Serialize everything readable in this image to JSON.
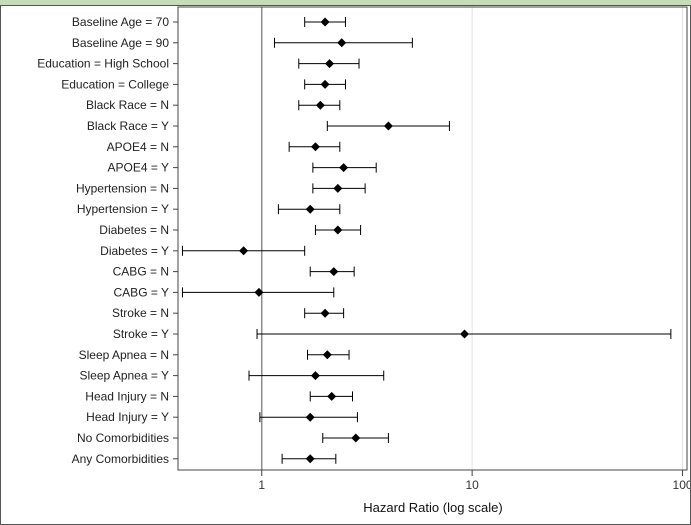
{
  "chart_data": {
    "type": "forest",
    "xscale": "log",
    "xlim": [
      0.4,
      105
    ],
    "xticks": [
      1,
      10,
      100
    ],
    "xtick_labels": [
      "1",
      "10",
      "100"
    ],
    "xlabel": "Hazard Ratio (log scale)",
    "reference_line": 1,
    "grid": "vertical gridlines at ticks",
    "colors": {
      "reference": "#8c8c8c",
      "grid": "#e2e2e2",
      "marker": "#000000",
      "header": "#c5dcb8"
    },
    "rows": [
      {
        "label": "Baseline Age = 70",
        "hr": 2.0,
        "lo": 1.6,
        "hi": 2.5
      },
      {
        "label": "Baseline Age = 90",
        "hr": 2.4,
        "lo": 1.15,
        "hi": 5.2
      },
      {
        "label": "Education = High School",
        "hr": 2.1,
        "lo": 1.5,
        "hi": 2.9
      },
      {
        "label": "Education = College",
        "hr": 2.0,
        "lo": 1.6,
        "hi": 2.5
      },
      {
        "label": "Black Race = N",
        "hr": 1.9,
        "lo": 1.5,
        "hi": 2.35
      },
      {
        "label": "Black Race = Y",
        "hr": 4.0,
        "lo": 2.05,
        "hi": 7.8
      },
      {
        "label": "APOE4 = N",
        "hr": 1.8,
        "lo": 1.35,
        "hi": 2.35
      },
      {
        "label": "APOE4 = Y",
        "hr": 2.45,
        "lo": 1.75,
        "hi": 3.5
      },
      {
        "label": "Hypertension = N",
        "hr": 2.3,
        "lo": 1.75,
        "hi": 3.1
      },
      {
        "label": "Hypertension = Y",
        "hr": 1.7,
        "lo": 1.2,
        "hi": 2.35
      },
      {
        "label": "Diabetes = N",
        "hr": 2.3,
        "lo": 1.8,
        "hi": 2.95
      },
      {
        "label": "Diabetes = Y",
        "hr": 0.82,
        "lo": 0.42,
        "hi": 1.6
      },
      {
        "label": "CABG = N",
        "hr": 2.2,
        "lo": 1.7,
        "hi": 2.75
      },
      {
        "label": "CABG = Y",
        "hr": 0.97,
        "lo": 0.42,
        "hi": 2.2
      },
      {
        "label": "Stroke = N",
        "hr": 2.0,
        "lo": 1.6,
        "hi": 2.45
      },
      {
        "label": "Stroke = Y",
        "hr": 9.2,
        "lo": 0.95,
        "hi": 88
      },
      {
        "label": "Sleep Apnea = N",
        "hr": 2.05,
        "lo": 1.65,
        "hi": 2.6
      },
      {
        "label": "Sleep Apnea = Y",
        "hr": 1.8,
        "lo": 0.87,
        "hi": 3.8
      },
      {
        "label": "Head Injury = N",
        "hr": 2.15,
        "lo": 1.7,
        "hi": 2.7
      },
      {
        "label": "Head Injury = Y",
        "hr": 1.7,
        "lo": 0.98,
        "hi": 2.85
      },
      {
        "label": "No Comorbidities",
        "hr": 2.8,
        "lo": 1.95,
        "hi": 4.0
      },
      {
        "label": "Any Comorbidities",
        "hr": 1.7,
        "lo": 1.25,
        "hi": 2.25
      }
    ]
  }
}
